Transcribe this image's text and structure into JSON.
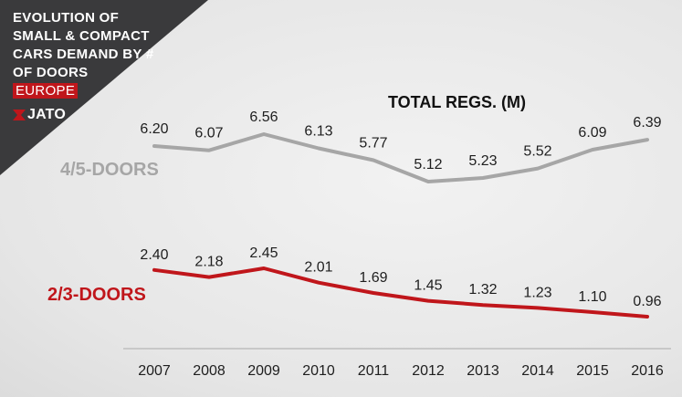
{
  "header": {
    "title_lines": [
      "EVOLUTION OF",
      "SMALL & COMPACT",
      "CARS DEMAND BY #",
      "OF DOORS"
    ],
    "region": "EUROPE",
    "brand": "JATO"
  },
  "colors": {
    "corner_bg": "#3a3a3c",
    "accent": "#c0161b",
    "series_4_5": "#a6a6a6",
    "series_2_3": "#c0161b"
  },
  "chart_data": {
    "type": "line",
    "title": "TOTAL REGS. (M)",
    "xlabel": "",
    "ylabel": "",
    "categories": [
      "2007",
      "2008",
      "2009",
      "2010",
      "2011",
      "2012",
      "2013",
      "2014",
      "2015",
      "2016"
    ],
    "ylim": [
      0,
      7
    ],
    "grid": false,
    "series": [
      {
        "name": "4/5-DOORS",
        "values": [
          6.2,
          6.07,
          6.56,
          6.13,
          5.77,
          5.12,
          5.23,
          5.52,
          6.09,
          6.39
        ],
        "labels": [
          "6.20",
          "6.07",
          "6.56",
          "6.13",
          "5.77",
          "5.12",
          "5.23",
          "5.52",
          "6.09",
          "6.39"
        ]
      },
      {
        "name": "2/3-DOORS",
        "values": [
          2.4,
          2.18,
          2.45,
          2.01,
          1.69,
          1.45,
          1.32,
          1.23,
          1.1,
          0.96
        ],
        "labels": [
          "2.40",
          "2.18",
          "2.45",
          "2.01",
          "1.69",
          "1.45",
          "1.32",
          "1.23",
          "1.10",
          "0.96"
        ]
      }
    ]
  }
}
